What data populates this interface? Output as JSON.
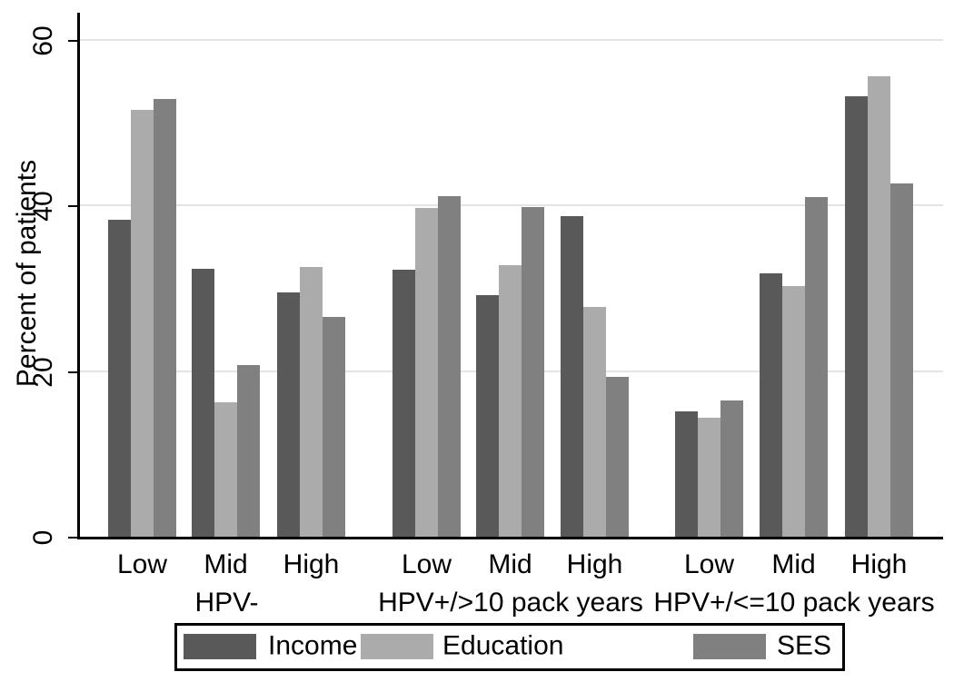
{
  "chart_data": {
    "type": "bar",
    "title": "",
    "ylabel": "Percent of patients",
    "ylim": [
      0,
      60
    ],
    "yticks": [
      0,
      20,
      40,
      60
    ],
    "grid": true,
    "grid_direction": "horizontal",
    "legend_position": "bottom",
    "group_labels": [
      "HPV-",
      "HPV+/>10 pack years",
      "HPV+/<=10 pack years"
    ],
    "cluster_labels": [
      "Low",
      "Mid",
      "High"
    ],
    "series": [
      {
        "name": "Income",
        "color": "#595959",
        "values": [
          [
            38.3,
            32.4,
            29.5
          ],
          [
            32.2,
            29.2,
            38.7
          ],
          [
            15.1,
            31.8,
            53.2
          ]
        ]
      },
      {
        "name": "Education",
        "color": "#ababab",
        "values": [
          [
            51.5,
            16.2,
            32.6
          ],
          [
            39.7,
            32.8,
            27.8
          ],
          [
            14.4,
            30.3,
            55.6
          ]
        ]
      },
      {
        "name": "SES",
        "color": "#808080",
        "values": [
          [
            52.9,
            20.7,
            26.5
          ],
          [
            41.1,
            39.8,
            19.3
          ],
          [
            16.5,
            41.0,
            42.7
          ]
        ]
      }
    ],
    "colors": {
      "axis": "#000000",
      "gridline": "#e4e4e4",
      "text": "#000000",
      "background": "#ffffff"
    }
  }
}
